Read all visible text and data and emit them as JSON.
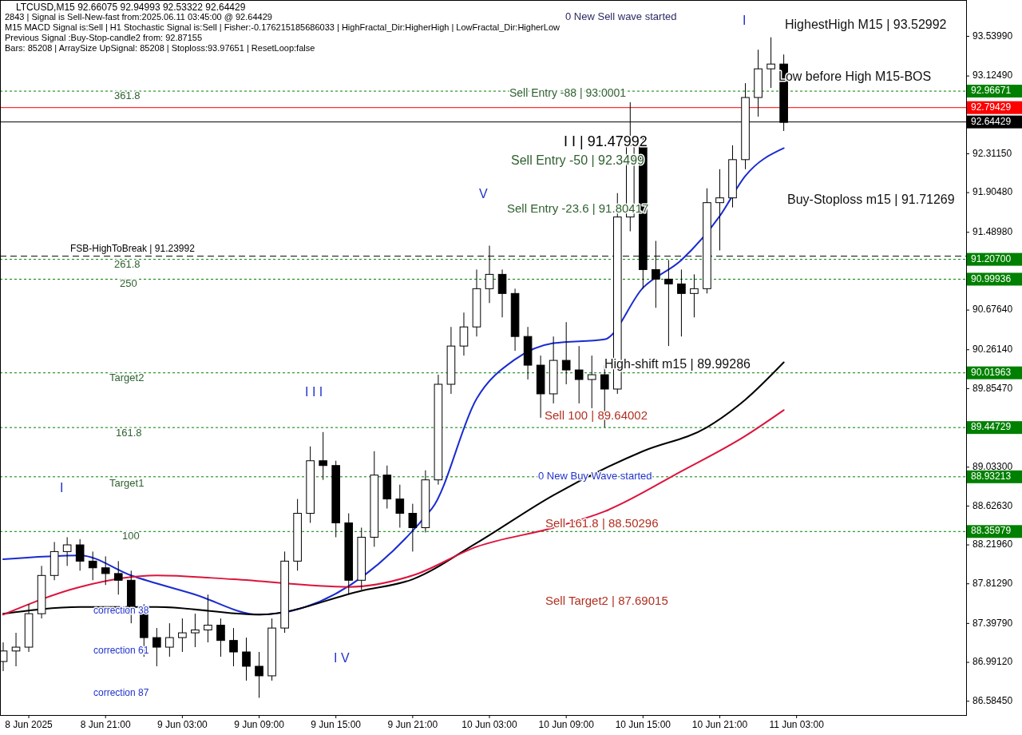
{
  "chart_data": {
    "type": "candlestick",
    "title": "LTCUSD,M15  92.66075 92.94993 92.53322 92.64429",
    "x": [
      "2025-06-08T13:00",
      "2025-06-08T14:00",
      "2025-06-08T15:00",
      "2025-06-08T16:00",
      "2025-06-08T17:00",
      "2025-06-08T18:00",
      "2025-06-08T19:00",
      "2025-06-08T20:00",
      "2025-06-08T21:00",
      "2025-06-08T22:00",
      "2025-06-08T23:00",
      "2025-06-09T00:00",
      "2025-06-09T01:00",
      "2025-06-09T02:00",
      "2025-06-09T03:00",
      "2025-06-09T04:00",
      "2025-06-09T05:00",
      "2025-06-09T06:00",
      "2025-06-09T07:00",
      "2025-06-09T08:00",
      "2025-06-09T09:00",
      "2025-06-09T10:00",
      "2025-06-09T11:00",
      "2025-06-09T12:00",
      "2025-06-09T13:00",
      "2025-06-09T14:00",
      "2025-06-09T15:00",
      "2025-06-09T16:00",
      "2025-06-09T17:00",
      "2025-06-09T18:00",
      "2025-06-09T19:00",
      "2025-06-09T20:00",
      "2025-06-09T21:00",
      "2025-06-09T22:00",
      "2025-06-09T23:00",
      "2025-06-10T00:00",
      "2025-06-10T01:00",
      "2025-06-10T02:00",
      "2025-06-10T03:00",
      "2025-06-10T04:00",
      "2025-06-10T05:00",
      "2025-06-10T06:00",
      "2025-06-10T07:00",
      "2025-06-10T08:00",
      "2025-06-10T09:00",
      "2025-06-10T10:00",
      "2025-06-10T11:00",
      "2025-06-10T12:00",
      "2025-06-10T13:00",
      "2025-06-10T14:00",
      "2025-06-10T15:00",
      "2025-06-10T16:00",
      "2025-06-10T17:00",
      "2025-06-10T18:00",
      "2025-06-10T19:00",
      "2025-06-10T20:00",
      "2025-06-10T21:00",
      "2025-06-10T22:00",
      "2025-06-10T23:00",
      "2025-06-11T00:00",
      "2025-06-11T01:00",
      "2025-06-11T02:00"
    ],
    "ohlc": [
      [
        87.0,
        87.2,
        86.9,
        87.11
      ],
      [
        87.11,
        87.3,
        86.95,
        87.15
      ],
      [
        87.15,
        87.6,
        87.1,
        87.5
      ],
      [
        87.5,
        88.0,
        87.45,
        87.9
      ],
      [
        87.9,
        88.25,
        87.85,
        88.15
      ],
      [
        88.15,
        88.3,
        88.0,
        88.22
      ],
      [
        88.22,
        88.28,
        87.95,
        88.05
      ],
      [
        88.05,
        88.15,
        87.85,
        87.98
      ],
      [
        87.98,
        88.1,
        87.8,
        87.92
      ],
      [
        87.92,
        88.05,
        87.7,
        87.85
      ],
      [
        87.85,
        87.95,
        87.4,
        87.5
      ],
      [
        87.5,
        87.6,
        87.05,
        87.25
      ],
      [
        87.25,
        87.35,
        86.95,
        87.15
      ],
      [
        87.15,
        87.4,
        87.05,
        87.25
      ],
      [
        87.25,
        87.45,
        87.1,
        87.3
      ],
      [
        87.3,
        87.5,
        87.15,
        87.33
      ],
      [
        87.33,
        87.7,
        87.2,
        87.38
      ],
      [
        87.38,
        87.45,
        87.05,
        87.22
      ],
      [
        87.22,
        87.35,
        86.95,
        87.1
      ],
      [
        87.1,
        87.25,
        86.8,
        86.95
      ],
      [
        86.95,
        87.1,
        86.62,
        86.85
      ],
      [
        86.85,
        87.45,
        86.8,
        87.35
      ],
      [
        87.35,
        88.15,
        87.3,
        88.05
      ],
      [
        88.05,
        88.7,
        87.95,
        88.55
      ],
      [
        88.55,
        89.25,
        88.45,
        89.1
      ],
      [
        89.1,
        89.4,
        88.9,
        89.05
      ],
      [
        89.05,
        89.1,
        88.3,
        88.45
      ],
      [
        88.45,
        88.55,
        87.7,
        87.85
      ],
      [
        87.85,
        88.4,
        87.75,
        88.3
      ],
      [
        88.3,
        89.2,
        88.2,
        88.95
      ],
      [
        88.95,
        89.05,
        88.6,
        88.7
      ],
      [
        88.7,
        88.85,
        88.4,
        88.55
      ],
      [
        88.55,
        88.65,
        88.15,
        88.4
      ],
      [
        88.4,
        89.0,
        88.35,
        88.9
      ],
      [
        88.9,
        90.0,
        88.85,
        89.9
      ],
      [
        89.9,
        90.5,
        89.8,
        90.3
      ],
      [
        90.3,
        90.65,
        90.2,
        90.5
      ],
      [
        90.5,
        91.1,
        90.4,
        90.9
      ],
      [
        90.9,
        91.35,
        90.75,
        91.05
      ],
      [
        91.05,
        91.1,
        90.6,
        90.85
      ],
      [
        90.85,
        90.9,
        90.25,
        90.4
      ],
      [
        90.4,
        90.5,
        89.95,
        90.1
      ],
      [
        90.1,
        90.2,
        89.55,
        89.8
      ],
      [
        89.8,
        90.4,
        89.7,
        90.15
      ],
      [
        90.15,
        90.55,
        89.9,
        90.05
      ],
      [
        90.05,
        90.3,
        89.7,
        89.95
      ],
      [
        89.95,
        90.2,
        89.65,
        90.0
      ],
      [
        90.0,
        90.1,
        89.45,
        89.85
      ],
      [
        89.85,
        91.9,
        89.8,
        91.65
      ],
      [
        91.65,
        92.85,
        91.5,
        92.4
      ],
      [
        92.4,
        92.5,
        90.9,
        91.1
      ],
      [
        91.1,
        91.4,
        90.7,
        91.0
      ],
      [
        91.0,
        91.2,
        90.3,
        90.95
      ],
      [
        90.95,
        91.1,
        90.4,
        90.85
      ],
      [
        90.85,
        91.05,
        90.6,
        90.9
      ],
      [
        90.9,
        91.95,
        90.85,
        91.8
      ],
      [
        91.8,
        92.15,
        91.3,
        91.85
      ],
      [
        91.85,
        92.4,
        91.75,
        92.25
      ],
      [
        92.25,
        93.05,
        92.15,
        92.9
      ],
      [
        92.9,
        93.4,
        92.7,
        93.2
      ],
      [
        93.2,
        93.53,
        93.0,
        93.25
      ],
      [
        93.25,
        93.35,
        92.55,
        92.64
      ]
    ],
    "series": [
      {
        "type": "line",
        "color": "#1a2bd0",
        "x": [
          "2025-06-08T13:00",
          "2025-06-08T19:00",
          "2025-06-08T23:00",
          "2025-06-09T04:00",
          "2025-06-09T09:00",
          "2025-06-09T22:30",
          "2025-06-10T02:00",
          "2025-06-10T05:00",
          "2025-06-10T08:00",
          "2025-06-10T12:00",
          "2025-06-10T15:00",
          "2025-06-10T18:00",
          "2025-06-10T21:00",
          "2025-06-10T23:00",
          "2025-06-11T02:00"
        ],
        "values": [
          88.07,
          88.11,
          87.9,
          87.7,
          87.49,
          88.6,
          89.75,
          90.16,
          90.33,
          90.37,
          90.91,
          91.2,
          91.66,
          92.08,
          92.37
        ]
      },
      {
        "type": "line",
        "color": "#000000",
        "x": [
          "2025-06-08T13:00",
          "2025-06-08T19:00",
          "2025-06-09T01:00",
          "2025-06-09T09:00",
          "2025-06-09T17:00",
          "2025-06-09T21:00",
          "2025-06-10T02:00",
          "2025-06-10T08:00",
          "2025-06-10T15:00",
          "2025-06-10T20:00",
          "2025-06-10T23:00",
          "2025-06-11T02:00"
        ],
        "values": [
          87.5,
          87.57,
          87.57,
          87.49,
          87.74,
          87.86,
          88.24,
          88.74,
          89.2,
          89.45,
          89.74,
          90.13
        ]
      },
      {
        "type": "line",
        "color": "#dc143c",
        "x": [
          "2025-06-08T13:00",
          "2025-06-08T19:00",
          "2025-06-09T01:00",
          "2025-06-09T07:00",
          "2025-06-09T16:00",
          "2025-06-09T21:00",
          "2025-06-10T02:00",
          "2025-06-10T08:00",
          "2025-06-10T12:00",
          "2025-06-10T18:00",
          "2025-06-10T23:00",
          "2025-06-11T02:00"
        ],
        "values": [
          87.49,
          87.78,
          87.9,
          87.86,
          87.78,
          87.9,
          88.2,
          88.4,
          88.57,
          88.99,
          89.36,
          89.63
        ]
      }
    ],
    "xlim": [
      "2025-06-08T12:45",
      "2025-06-11T16:15"
    ],
    "xticks": [
      {
        "value": "2025-06-08T15:00",
        "label": "8 Jun 2025"
      },
      {
        "value": "2025-06-08T21:00",
        "label": "8 Jun 21:00"
      },
      {
        "value": "2025-06-09T03:00",
        "label": "9 Jun 03:00"
      },
      {
        "value": "2025-06-09T09:00",
        "label": "9 Jun 09:00"
      },
      {
        "value": "2025-06-09T15:00",
        "label": "9 Jun 15:00"
      },
      {
        "value": "2025-06-09T21:00",
        "label": "9 Jun 21:00"
      },
      {
        "value": "2025-06-10T03:00",
        "label": "10 Jun 03:00"
      },
      {
        "value": "2025-06-10T09:00",
        "label": "10 Jun 09:00"
      },
      {
        "value": "2025-06-10T15:00",
        "label": "10 Jun 15:00"
      },
      {
        "value": "2025-06-10T21:00",
        "label": "10 Jun 21:00"
      },
      {
        "value": "2025-06-11T03:00",
        "label": "11 Jun 03:00"
      }
    ],
    "ylim": [
      86.44,
      93.92
    ],
    "yticks": [
      {
        "value": 86.5845,
        "label": "86.58450"
      },
      {
        "value": 86.9912,
        "label": "86.99120"
      },
      {
        "value": 87.3979,
        "label": "87.39790"
      },
      {
        "value": 87.8129,
        "label": "87.81290"
      },
      {
        "value": 88.2196,
        "label": "88.21960"
      },
      {
        "value": 88.6263,
        "label": "88.62630"
      },
      {
        "value": 89.033,
        "label": "89.03300"
      },
      {
        "value": 89.8547,
        "label": "89.85470"
      },
      {
        "value": 90.2614,
        "label": "90.26140"
      },
      {
        "value": 90.6764,
        "label": "90.67640"
      },
      {
        "value": 91.4898,
        "label": "91.48980"
      },
      {
        "value": 91.9048,
        "label": "91.90480"
      },
      {
        "value": 92.3115,
        "label": "92.31150"
      },
      {
        "value": 93.1249,
        "label": "93.12490"
      },
      {
        "value": 93.5399,
        "label": "93.53990"
      }
    ],
    "ref_lines": [
      {
        "axis": "y",
        "value": 92.96671,
        "label": "92.96671",
        "color": "#008000",
        "line_style": "dotted"
      },
      {
        "axis": "y",
        "value": 92.79429,
        "label": "92.79429",
        "color": "#ff0000",
        "line_style": "solid"
      },
      {
        "axis": "y",
        "value": 92.64429,
        "label": "92.64429",
        "color": "#000000",
        "line_style": "solid"
      },
      {
        "axis": "y",
        "value": 91.23992,
        "label": "FSB-HighToBreak | 91.23992",
        "color": "#000000",
        "line_style": "dashed"
      },
      {
        "axis": "y",
        "value": 91.207,
        "label": "91.20700",
        "color": "#008000",
        "line_style": "dotted"
      },
      {
        "axis": "y",
        "value": 90.99936,
        "label": "90.99936",
        "color": "#008000",
        "line_style": "dotted"
      },
      {
        "axis": "y",
        "value": 90.01963,
        "label": "90.01963",
        "color": "#008000",
        "line_style": "dotted"
      },
      {
        "axis": "y",
        "value": 89.44729,
        "label": "89.44729",
        "color": "#008000",
        "line_style": "dotted"
      },
      {
        "axis": "y",
        "value": 88.93213,
        "label": "88.93213",
        "color": "#008000",
        "line_style": "dotted"
      },
      {
        "axis": "y",
        "value": 88.35979,
        "label": "88.35979",
        "color": "#008000",
        "line_style": "dotted"
      }
    ],
    "annotations": [
      "2843 | Signal is Sell-New-fast from:2025.06.11 03:45:00 @ 92.64429",
      "M15 MACD Signal is:Sell | H1 Stochastic Signal is:Sell | Fisher:-0.176215185686033 | HighFractal_Dir:HigherHigh | LowFractal_Dir:HigherLow",
      "Previous Signal :Buy-Stop-candle2 from: 92.87155",
      "Bars: 85208 | ArraySize UpSignal: 85208 | Stoploss:93.97651 | ResetLoop:false",
      "HighestHigh   M15 | 93.52992",
      "Low before High   M15-BOS",
      "Buy-Stoploss m15 | 91.71269",
      "0 New Sell wave started",
      "Sell Entry -88 | 93.0001",
      "I I | 91.47992",
      "Sell Entry -50 | 92.3499",
      "Sell Entry -23.6 | 91.80417",
      "V",
      "I",
      "I I I",
      "I V",
      "I",
      "High-shift m15 | 89.99286",
      "Sell 100 | 89.64002",
      "0 New Buy Wave started",
      "Sell 161.8 | 88.50296",
      "Sell Target2 | 87.69015",
      "361.8",
      "261.8",
      "250",
      "Target2",
      "161.8",
      "Target1",
      "100",
      "correction 38",
      "correction 61",
      "correction 87"
    ]
  }
}
